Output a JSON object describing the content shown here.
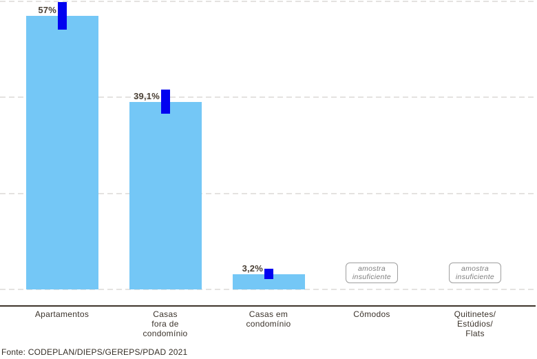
{
  "chart_data": {
    "type": "bar",
    "title": "",
    "categories": [
      "Apartamentos",
      "Casas\nfora de\ncondomínio",
      "Casas em\ncondomínio",
      "Cômodos",
      "Quitinetes/\nEstúdios/\nFlats"
    ],
    "values": [
      57,
      39.1,
      3.2,
      null,
      null
    ],
    "value_labels": [
      "57%",
      "39,1%",
      "3,2%",
      "",
      ""
    ],
    "error_margins": [
      2.9,
      2.5,
      1.1,
      null,
      null
    ],
    "insufficient_sample_text": "amostra\ninsuficiente",
    "ylim": [
      0,
      60
    ],
    "gridlines": [
      0,
      20,
      40,
      60
    ],
    "grid_style": "horizontal dashed, no tick labels",
    "legend": "none",
    "xlabel": "",
    "ylabel": ""
  },
  "colors": {
    "bar": "#74C7F6",
    "error_bar": "#0202F0",
    "value_label": "#4A4035",
    "gridline": "#E4E2E0",
    "axis_line": "#3D332B",
    "category_label": "#3A322A",
    "sample_box_border": "#9E9E9E",
    "sample_box_text": "#7D7D7D"
  },
  "footer": {
    "source": "Fonte: CODEPLAN/DIEPS/GEREPS/PDAD 2021"
  }
}
